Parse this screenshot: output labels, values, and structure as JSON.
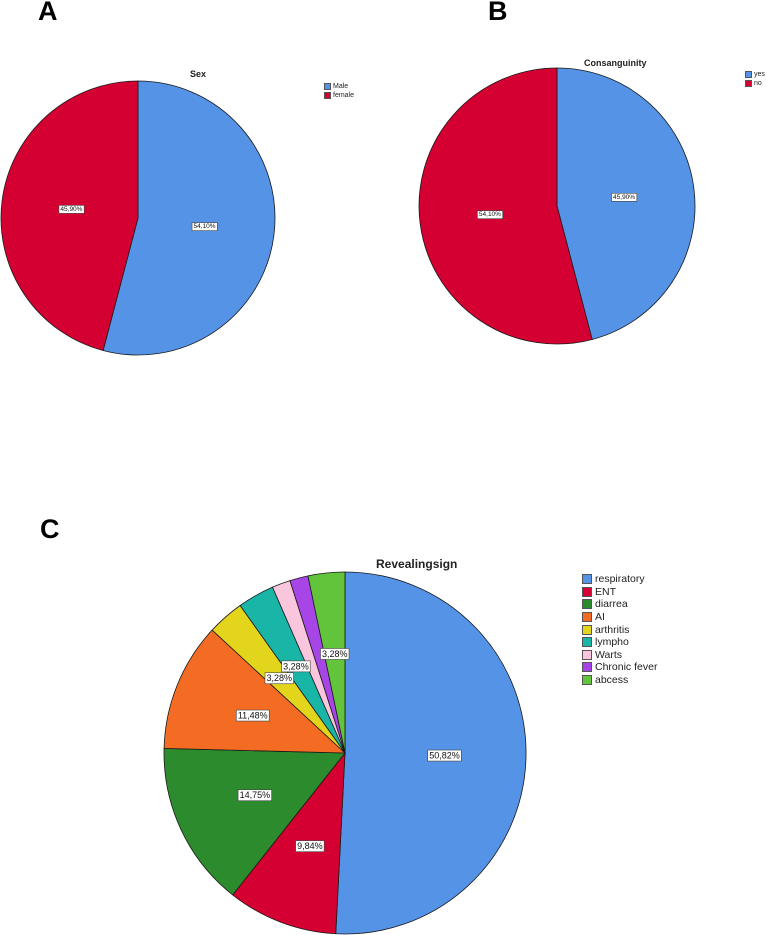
{
  "panels": [
    "A",
    "B",
    "C"
  ],
  "chart_data": [
    {
      "panel": "A",
      "type": "pie",
      "title": "Sex",
      "slices": [
        {
          "label": "Male",
          "value": 54.1,
          "display": "54,10%",
          "color": "#5493e6"
        },
        {
          "label": "female",
          "value": 45.9,
          "display": "45,90%",
          "color": "#d50032"
        }
      ]
    },
    {
      "panel": "B",
      "type": "pie",
      "title": "Consanguinity",
      "slices": [
        {
          "label": "yes",
          "value": 45.9,
          "display": "45,90%",
          "color": "#5493e6"
        },
        {
          "label": "no",
          "value": 54.1,
          "display": "54,10%",
          "color": "#d50032"
        }
      ]
    },
    {
      "panel": "C",
      "type": "pie",
      "title": "Revealingsign",
      "slices": [
        {
          "label": "respiratory",
          "value": 50.82,
          "display": "50,82%",
          "color": "#5493e6"
        },
        {
          "label": "ENT",
          "value": 9.84,
          "display": "9,84%",
          "color": "#d50032"
        },
        {
          "label": "diarrea",
          "value": 14.75,
          "display": "14,75%",
          "color": "#2c8b2c"
        },
        {
          "label": "AI",
          "value": 11.48,
          "display": "11,48%",
          "color": "#f46c23"
        },
        {
          "label": "arthritis",
          "value": 3.28,
          "display": "3,28%",
          "color": "#e3d41c"
        },
        {
          "label": "lympho",
          "value": 3.28,
          "display": "3,28%",
          "color": "#19b5a6"
        },
        {
          "label": "Warts",
          "value": 1.64,
          "display": "",
          "color": "#f9c6dd"
        },
        {
          "label": "Chronic fever",
          "value": 1.64,
          "display": "",
          "color": "#a845e6"
        },
        {
          "label": "abcess",
          "value": 3.28,
          "display": "3,28%",
          "color": "#61c43a"
        }
      ]
    }
  ]
}
